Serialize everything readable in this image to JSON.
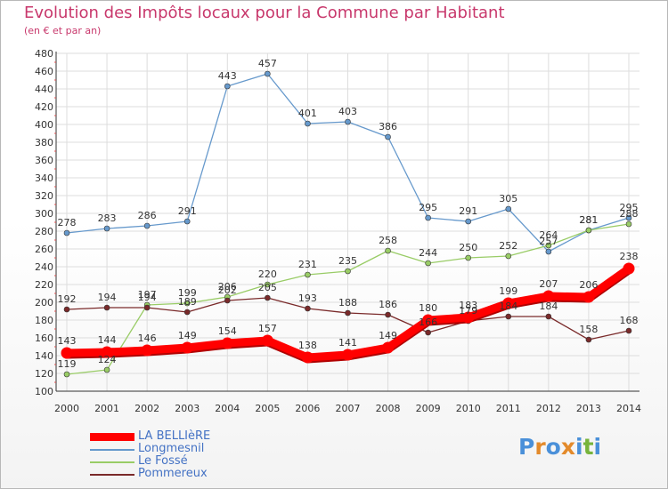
{
  "header": {
    "title": "Evolution des Impôts locaux pour la Commune par Habitant",
    "subtitle": "(en € et par an)"
  },
  "logo": {
    "text": "Proxiti",
    "letter_colors": [
      "#4a90d9",
      "#e38a2b",
      "#4a90d9",
      "#e38a2b",
      "#4a90d9",
      "#77b43c",
      "#4a90d9"
    ]
  },
  "colors": {
    "title": "#c8386c",
    "grid": "#dddddd",
    "axis": "#333333"
  },
  "chart_data": {
    "type": "line",
    "x": [
      2000,
      2001,
      2002,
      2003,
      2004,
      2005,
      2006,
      2007,
      2008,
      2009,
      2010,
      2011,
      2012,
      2013,
      2014
    ],
    "ylim": [
      100,
      480
    ],
    "yticks": [
      100,
      120,
      140,
      160,
      180,
      200,
      220,
      240,
      260,
      280,
      300,
      320,
      340,
      360,
      380,
      400,
      420,
      440,
      460,
      480
    ],
    "grid": true,
    "legend_position": "bottom-left",
    "series": [
      {
        "name": "LA BELLIèRE",
        "color": "#ff0000",
        "width": "thick",
        "values": [
          143,
          144,
          146,
          149,
          154,
          157,
          138,
          141,
          149,
          180,
          183,
          199,
          207,
          206,
          238
        ]
      },
      {
        "name": "Longmesnil",
        "color": "#6699cc",
        "width": "thin",
        "values": [
          278,
          283,
          286,
          291,
          443,
          457,
          401,
          403,
          386,
          295,
          291,
          305,
          257,
          281,
          295
        ]
      },
      {
        "name": "Le Fossé",
        "color": "#99cc66",
        "width": "thin",
        "values": [
          119,
          124,
          197,
          199,
          206,
          220,
          231,
          235,
          258,
          244,
          250,
          252,
          264,
          281,
          288
        ]
      },
      {
        "name": "Pommereux",
        "color": "#7a2a2a",
        "width": "thin",
        "values": [
          192,
          194,
          194,
          189,
          202,
          205,
          193,
          188,
          186,
          166,
          179,
          184,
          184,
          158,
          168
        ]
      }
    ],
    "data_labels": [
      [
        "143",
        "144",
        "146",
        "149",
        "154",
        "157",
        "138",
        "141",
        "149",
        "180",
        "183",
        "199",
        "207",
        "206",
        "238"
      ],
      [
        "278",
        "283",
        "286",
        "291",
        "443",
        "457",
        "401",
        "403",
        "386",
        "295",
        "291",
        "305",
        "257",
        "281",
        "295"
      ],
      [
        "119",
        "124",
        "197",
        "199",
        "206",
        "220",
        "231",
        "235",
        "258",
        "244",
        "250",
        "252",
        "264",
        "281",
        "288"
      ],
      [
        "192",
        "194",
        "194",
        "189",
        "202",
        "205",
        "193",
        "188",
        "186",
        "166",
        "179",
        "184",
        "184",
        "158",
        "168"
      ]
    ]
  }
}
